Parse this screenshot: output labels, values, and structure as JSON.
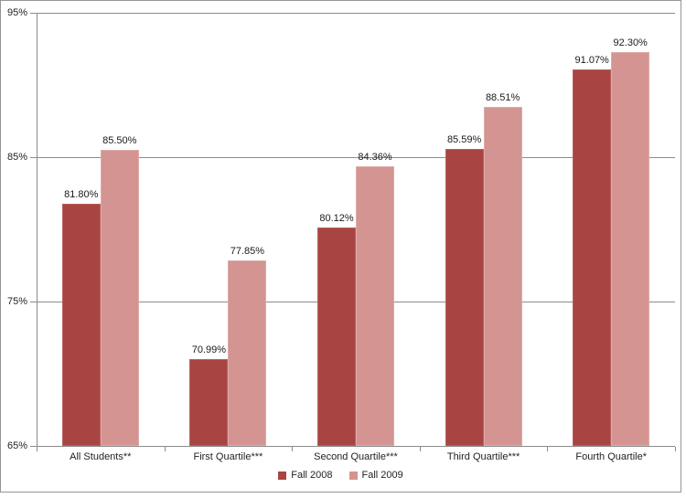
{
  "chart_data": {
    "type": "bar",
    "title": "",
    "categories": [
      "All Students**",
      "First Quartile***",
      "Second Quartile***",
      "Third Quartile***",
      "Fourth Quartile*"
    ],
    "series": [
      {
        "name": "Fall 2008",
        "color": "#a84542",
        "values": [
          81.8,
          70.99,
          80.12,
          85.59,
          91.07
        ],
        "labels": [
          "81.80%",
          "70.99%",
          "80.12%",
          "85.59%",
          "91.07%"
        ]
      },
      {
        "name": "Fall 2009",
        "color": "#d39492",
        "values": [
          85.5,
          77.85,
          84.36,
          88.51,
          92.3
        ],
        "labels": [
          "85.50%",
          "77.85%",
          "84.36%",
          "88.51%",
          "92.30%"
        ]
      }
    ],
    "ylim": [
      65,
      95
    ],
    "yticks": [
      95,
      85,
      75,
      65
    ],
    "ytick_labels": [
      "95%",
      "85%",
      "75%",
      "65%"
    ],
    "grid": true,
    "legend_position": "bottom",
    "axis_color": "#8c8c8c",
    "text_color": "#1f1f1f",
    "frame_border_color": "#969696"
  }
}
